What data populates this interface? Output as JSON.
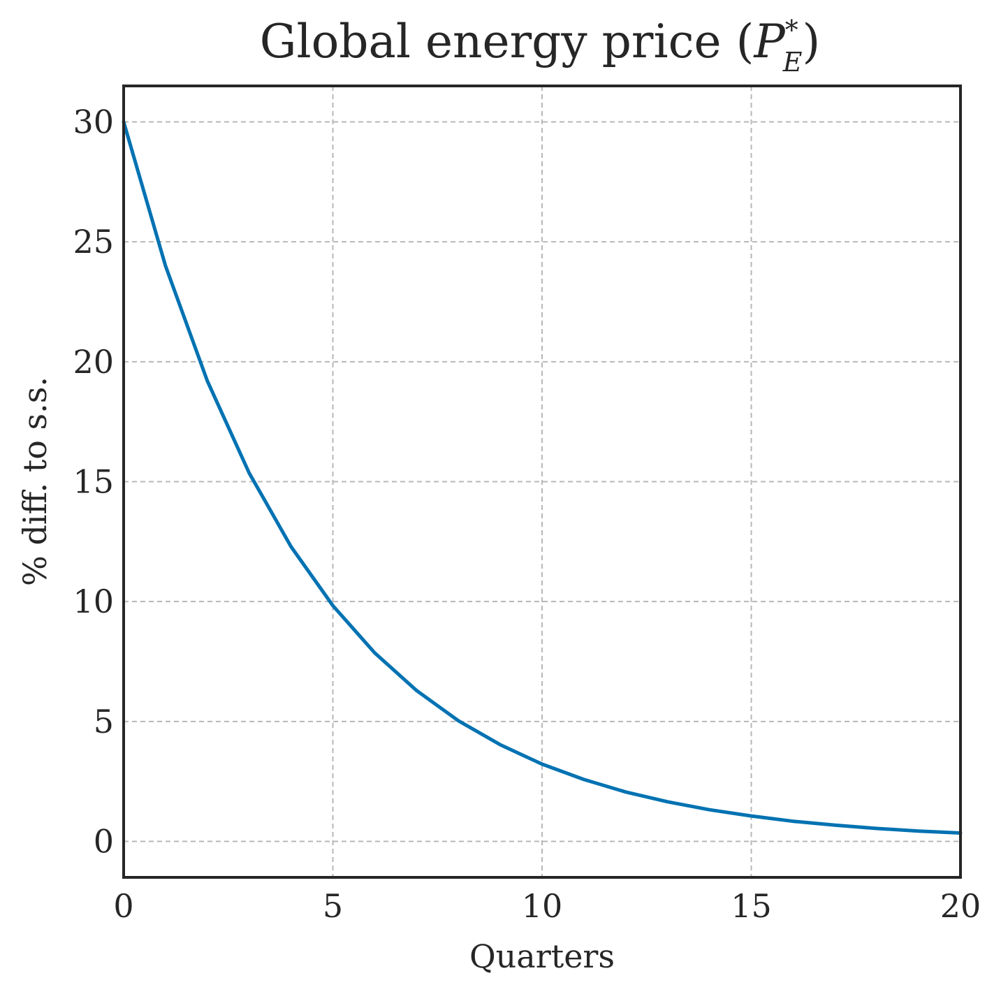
{
  "chart_data": {
    "type": "line",
    "title": "Global energy price (",
    "title_symbol": "P",
    "title_superscript": "*",
    "title_subscript": "E",
    "title_close": ")",
    "xlabel": "Quarters",
    "ylabel": "% diff. to s.s.",
    "xlim": [
      0,
      20
    ],
    "ylim": [
      -1.5,
      31.5
    ],
    "xticks": [
      0,
      5,
      10,
      15,
      20
    ],
    "yticks": [
      0,
      5,
      10,
      15,
      20,
      25,
      30
    ],
    "grid": true,
    "legend": "none",
    "series": [
      {
        "color": "#0072b2",
        "x": [
          0,
          1,
          2,
          3,
          4,
          5,
          6,
          7,
          8,
          9,
          10,
          11,
          12,
          13,
          14,
          15,
          16,
          17,
          18,
          19,
          20
        ],
        "values": [
          30.0,
          24.0,
          19.2,
          15.36,
          12.29,
          9.83,
          7.86,
          6.29,
          5.03,
          4.03,
          3.22,
          2.58,
          2.06,
          1.65,
          1.32,
          1.06,
          0.84,
          0.68,
          0.54,
          0.43,
          0.35
        ]
      }
    ]
  }
}
